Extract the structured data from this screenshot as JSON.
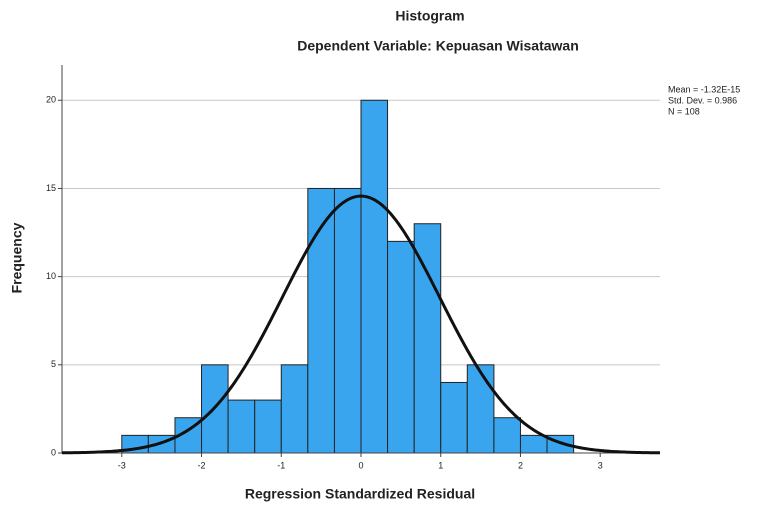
{
  "chart_data": {
    "type": "histogram",
    "title": "Histogram",
    "subtitle": "Dependent Variable: Kepuasan Wisatawan",
    "x_label": "Regression Standardized Residual",
    "y_label": "Frequency",
    "bins": [
      -3,
      -2.667,
      -2.333,
      -2,
      -1.667,
      -1.333,
      -1,
      -0.667,
      -0.333,
      0,
      0.333,
      0.667,
      1,
      1.333,
      1.667,
      2,
      2.333,
      2.667
    ],
    "values": [
      1,
      1,
      2,
      5,
      3,
      3,
      5,
      15,
      15,
      20,
      12,
      13,
      4,
      5,
      2,
      1,
      1
    ],
    "color": "#3aa5ef",
    "curve_color": "#111111",
    "xlim": [
      -3.75,
      3.75
    ],
    "ylim": [
      0,
      22
    ],
    "xticks": [
      -3,
      -2,
      -1,
      0,
      1,
      2,
      3
    ],
    "yticks": [
      0,
      5,
      10,
      15,
      20
    ],
    "grid": true,
    "stats": [
      {
        "value": -1.32e-15,
        "label": "Mean = -1.32E-15"
      },
      {
        "value": 0.986,
        "label": "Std. Dev. = 0.986"
      },
      {
        "value": 108,
        "label": "N = 108"
      }
    ]
  }
}
